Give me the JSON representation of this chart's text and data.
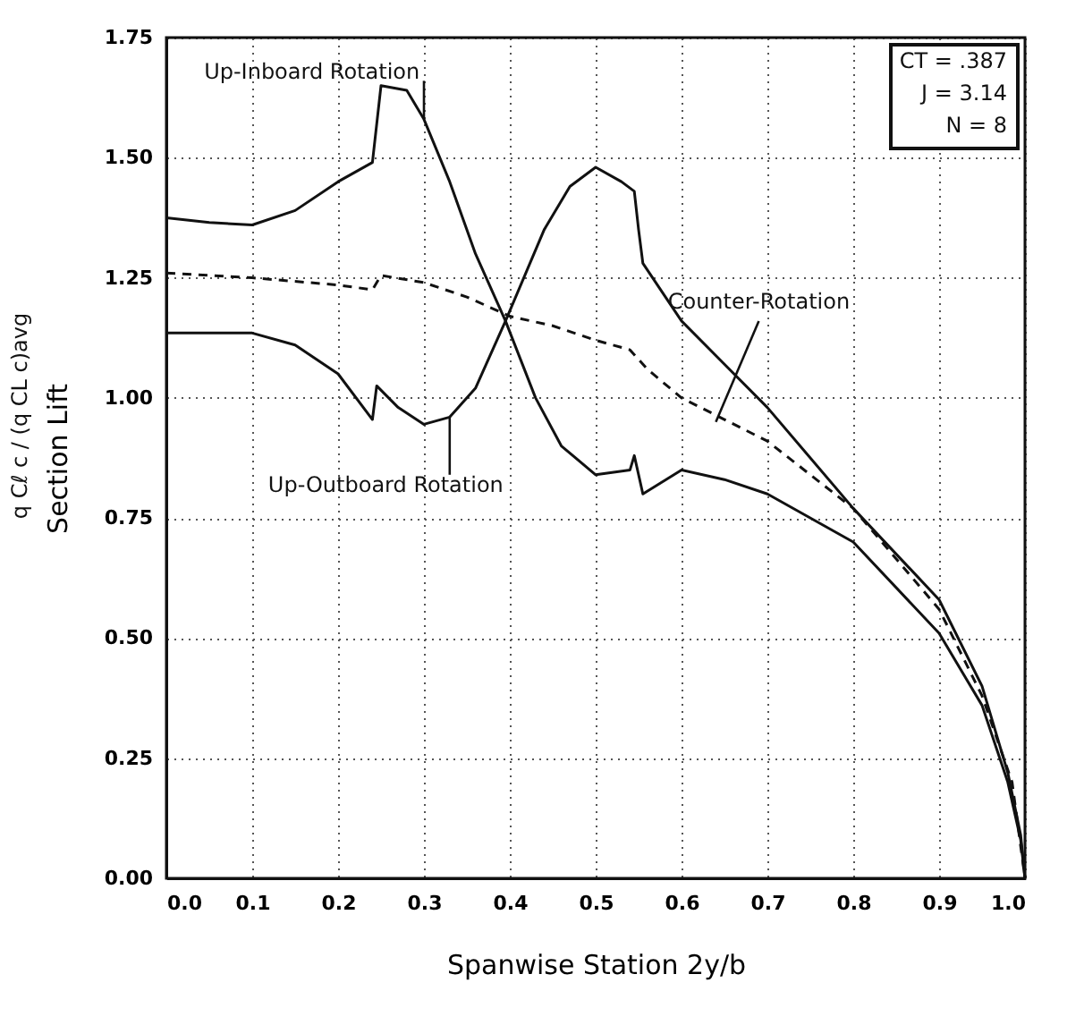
{
  "chart_data": {
    "type": "line",
    "xlabel": "Spanwise Station  2y/b",
    "ylabel": "Section Lift",
    "xlim": [
      0,
      1.0
    ],
    "xticks": [
      {
        "value": 0,
        "label": "0.0"
      },
      0.1,
      0.2,
      0.3,
      0.4,
      0.5,
      0.6,
      0.7,
      0.8,
      0.9,
      {
        "value": 1.0,
        "label": "1.0"
      }
    ],
    "ylim": [
      0,
      1.75
    ],
    "yticks": [
      {
        "value": 0,
        "label": "0.00"
      },
      0.25,
      {
        "value": 0.5,
        "label": "0.50"
      },
      0.75,
      {
        "value": 1.0,
        "label": "1.00"
      },
      1.25,
      {
        "value": 1.5,
        "label": "1.50"
      },
      1.75
    ],
    "grid": true,
    "marker": "none",
    "series": [
      {
        "color": "#111111",
        "line_style": "solid",
        "x": [
          0,
          0.05,
          0.1,
          0.15,
          0.2,
          0.24,
          0.25,
          0.28,
          0.3,
          0.33,
          0.36,
          0.395,
          0.43,
          0.46,
          0.5,
          0.54,
          0.545,
          0.555,
          0.6,
          0.65,
          0.7,
          0.8,
          0.9,
          0.95,
          0.98,
          0.995,
          1.0
        ],
        "values": [
          1.375,
          1.365,
          1.36,
          1.39,
          1.45,
          1.49,
          1.65,
          1.64,
          1.58,
          1.45,
          1.3,
          1.16,
          1.0,
          0.9,
          0.84,
          0.85,
          0.88,
          0.8,
          0.85,
          0.83,
          0.8,
          0.7,
          0.51,
          0.36,
          0.2,
          0.08,
          0
        ]
      },
      {
        "color": "#111111",
        "line_style": "solid",
        "x": [
          0,
          0.05,
          0.1,
          0.15,
          0.2,
          0.24,
          0.245,
          0.27,
          0.3,
          0.33,
          0.36,
          0.395,
          0.44,
          0.47,
          0.5,
          0.53,
          0.545,
          0.55,
          0.555,
          0.6,
          0.65,
          0.7,
          0.8,
          0.9,
          0.95,
          0.98,
          0.995,
          1.0
        ],
        "values": [
          1.135,
          1.135,
          1.135,
          1.11,
          1.05,
          0.955,
          1.025,
          0.98,
          0.945,
          0.96,
          1.02,
          1.16,
          1.35,
          1.44,
          1.48,
          1.45,
          1.43,
          1.35,
          1.28,
          1.16,
          1.07,
          0.98,
          0.77,
          0.58,
          0.4,
          0.22,
          0.09,
          0
        ]
      },
      {
        "color": "#111111",
        "line_style": "dashed",
        "x": [
          0,
          0.1,
          0.2,
          0.24,
          0.25,
          0.3,
          0.35,
          0.4,
          0.45,
          0.5,
          0.54,
          0.56,
          0.6,
          0.7,
          0.8,
          0.9,
          0.95,
          0.985,
          1.0
        ],
        "values": [
          1.26,
          1.25,
          1.235,
          1.225,
          1.255,
          1.24,
          1.21,
          1.17,
          1.15,
          1.12,
          1.1,
          1.06,
          1.0,
          0.91,
          0.77,
          0.56,
          0.38,
          0.2,
          0
        ]
      }
    ],
    "annotations": [
      {
        "text": "Up-Inboard Rotation",
        "x": 0.3,
        "y": 1.58
      },
      {
        "text": "Up-Outboard Rotation",
        "x": 0.33,
        "y": 0.96
      },
      {
        "text": "Counter-Rotation",
        "x": 0.64,
        "y": 0.95
      },
      "CT = .387",
      "J = 3.14",
      "N = 8",
      "q Cℓ c / (q CL c)avg"
    ]
  }
}
